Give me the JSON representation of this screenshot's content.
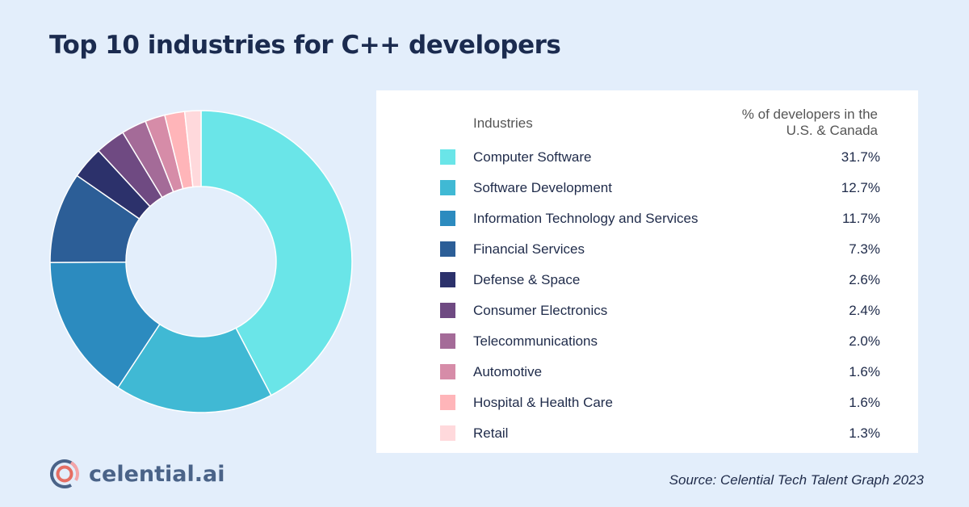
{
  "title": "Top 10 industries for C++ developers",
  "chart_data": {
    "type": "pie",
    "variant": "donut",
    "title": "Top 10 industries for C++ developers",
    "column_headers": [
      "Industries",
      "% of developers in the U.S. & Canada"
    ],
    "categories": [
      "Computer Software",
      "Software Development",
      "Information Technology and Services",
      "Financial Services",
      "Defense & Space",
      "Consumer Electronics",
      "Telecommunications",
      "Automotive",
      "Hospital & Health Care",
      "Retail"
    ],
    "values": [
      31.7,
      12.7,
      11.7,
      7.3,
      2.6,
      2.4,
      2.0,
      1.6,
      1.6,
      1.3
    ],
    "value_labels": [
      "31.7%",
      "12.7%",
      "11.7%",
      "7.3%",
      "2.6%",
      "2.4%",
      "2.0%",
      "1.6%",
      "1.6%",
      "1.3%"
    ],
    "colors": [
      "#6ae5e8",
      "#40b9d4",
      "#2c8bbf",
      "#2c5e97",
      "#2c316b",
      "#6f4a82",
      "#a46b98",
      "#d68ca8",
      "#ffb5b9",
      "#ffd9dc"
    ],
    "legend_placement": "right"
  },
  "logo": {
    "text": "celential.ai"
  },
  "source": "Source: Celential Tech Talent Graph 2023"
}
